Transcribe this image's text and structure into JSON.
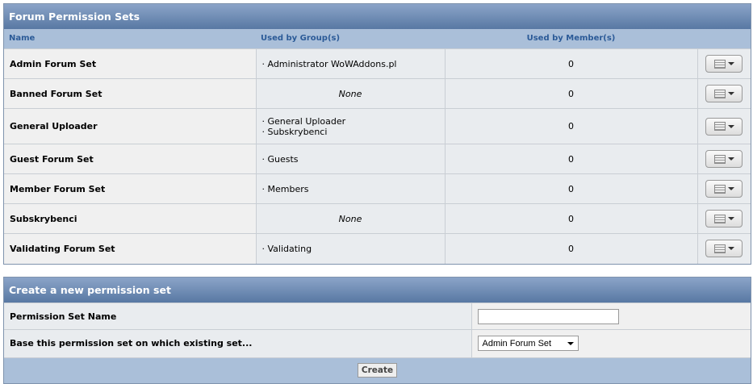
{
  "permissions": {
    "title": "Forum Permission Sets",
    "columns": {
      "name": "Name",
      "groups": "Used by Group(s)",
      "members": "Used by Member(s)"
    },
    "rows": [
      {
        "name": "Admin Forum Set",
        "groups": [
          "· Administrator WoWAddons.pl"
        ],
        "members": "0"
      },
      {
        "name": "Banned Forum Set",
        "groups": [],
        "none": "None",
        "members": "0"
      },
      {
        "name": "General Uploader",
        "groups": [
          "· General Uploader",
          "· Subskrybenci"
        ],
        "members": "0"
      },
      {
        "name": "Guest Forum Set",
        "groups": [
          "· Guests"
        ],
        "members": "0"
      },
      {
        "name": "Member Forum Set",
        "groups": [
          "· Members"
        ],
        "members": "0"
      },
      {
        "name": "Subskrybenci",
        "groups": [],
        "none": "None",
        "members": "0"
      },
      {
        "name": "Validating Forum Set",
        "groups": [
          "· Validating"
        ],
        "members": "0"
      }
    ]
  },
  "create": {
    "title": "Create a new permission set",
    "name_label": "Permission Set Name",
    "name_value": "",
    "base_label": "Base this permission set on which existing set...",
    "base_selected": "Admin Forum Set",
    "create_label": "Create"
  }
}
